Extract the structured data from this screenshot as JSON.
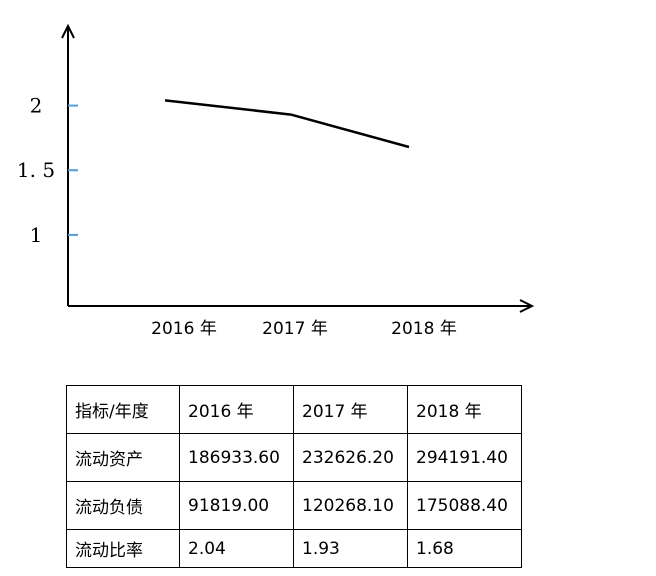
{
  "chart_data": {
    "type": "line",
    "categories": [
      "2016 年",
      "2017 年",
      "2018 年"
    ],
    "values": [
      2.04,
      1.93,
      1.68
    ],
    "y_ticks": [
      {
        "value": 2,
        "label": "2"
      },
      {
        "value": 1.5,
        "label": "1. 5"
      },
      {
        "value": 1,
        "label": "1"
      }
    ],
    "ylim": [
      0.45,
      2.6
    ],
    "grid": false,
    "line_color": "#000000",
    "tick_color": "#5b9bd5"
  },
  "table": {
    "header": [
      "指标/年度",
      "2016 年",
      "2017 年",
      "2018 年"
    ],
    "rows": [
      [
        "流动资产",
        "186933.60",
        "232626.20",
        "294191.40"
      ],
      [
        "流动负债",
        "91819.00",
        "120268.10",
        "175088.40"
      ],
      [
        "流动比率",
        "2.04",
        "1.93",
        "1.68"
      ]
    ]
  }
}
